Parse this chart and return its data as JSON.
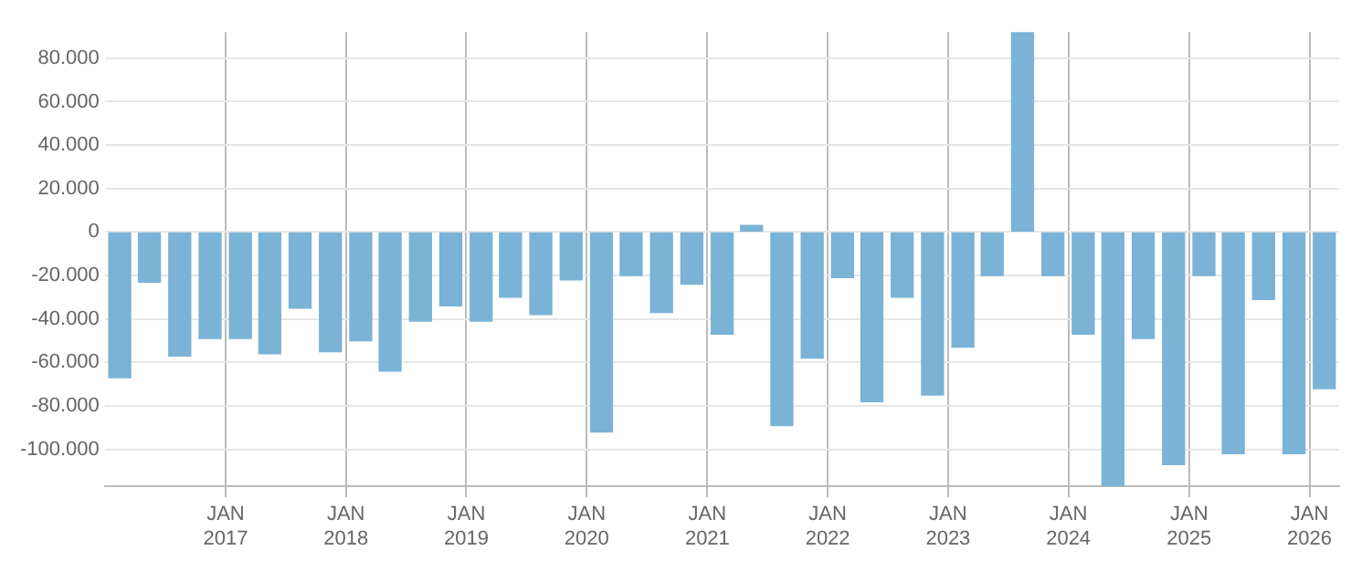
{
  "chart_data": {
    "type": "bar",
    "x": [
      "2016-02-15",
      "2016-05-15",
      "2016-08-15",
      "2016-11-15",
      "2017-02-15",
      "2017-05-15",
      "2017-08-15",
      "2017-11-15",
      "2018-02-15",
      "2018-05-15",
      "2018-08-15",
      "2018-11-15",
      "2019-02-15",
      "2019-05-15",
      "2019-08-15",
      "2019-11-15",
      "2020-02-15",
      "2020-05-15",
      "2020-08-15",
      "2020-11-15",
      "2021-02-15",
      "2021-05-15",
      "2021-08-15",
      "2021-11-15",
      "2022-02-15",
      "2022-05-15",
      "2022-08-15",
      "2022-11-15",
      "2023-02-15",
      "2023-05-15",
      "2023-08-15",
      "2023-11-15",
      "2024-02-15",
      "2024-05-15",
      "2024-08-15",
      "2024-11-15",
      "2025-02-15",
      "2025-05-15",
      "2025-08-15",
      "2025-11-15",
      "2026-02-15"
    ],
    "values": [
      -67000,
      -23000,
      -57000,
      -49000,
      -49000,
      -56000,
      -35000,
      -55000,
      -50000,
      -64000,
      -41000,
      -34000,
      -41000,
      -30000,
      -38000,
      -22000,
      -92000,
      -20000,
      -37000,
      -24000,
      -47000,
      3000,
      -89000,
      -58000,
      -21000,
      -78000,
      -30000,
      -75000,
      -53000,
      -20000,
      92000,
      -20000,
      -47000,
      -117000,
      -49000,
      -107000,
      -20000,
      -102000,
      -31000,
      -102000,
      -72000
    ],
    "color": "#7ab3d6",
    "xlim": [
      "2016-01-01",
      "2026-04-01"
    ],
    "xticks": [
      {
        "value": "2017-01-01",
        "label": "JAN 2017"
      },
      {
        "value": "2018-01-01",
        "label": "JAN 2018"
      },
      {
        "value": "2019-01-01",
        "label": "JAN 2019"
      },
      {
        "value": "2020-01-01",
        "label": "JAN 2020"
      },
      {
        "value": "2021-01-01",
        "label": "JAN 2021"
      },
      {
        "value": "2022-01-01",
        "label": "JAN 2022"
      },
      {
        "value": "2023-01-01",
        "label": "JAN 2023"
      },
      {
        "value": "2024-01-01",
        "label": "JAN 2024"
      },
      {
        "value": "2025-01-01",
        "label": "JAN 2025"
      },
      {
        "value": "2026-01-01",
        "label": "JAN 2026"
      }
    ],
    "ylim": [
      -117000,
      92000
    ],
    "yticks": [
      {
        "value": -100000,
        "label": "-100.000"
      },
      {
        "value": -80000,
        "label": "-80.000"
      },
      {
        "value": -60000,
        "label": "-60.000"
      },
      {
        "value": -40000,
        "label": "-40.000"
      },
      {
        "value": -20000,
        "label": "-20.000"
      },
      0,
      {
        "value": 20000,
        "label": "20.000"
      },
      {
        "value": 40000,
        "label": "40.000"
      },
      {
        "value": 60000,
        "label": "60.000"
      },
      {
        "value": 80000,
        "label": "80.000"
      }
    ],
    "grid": true,
    "legend": false
  }
}
